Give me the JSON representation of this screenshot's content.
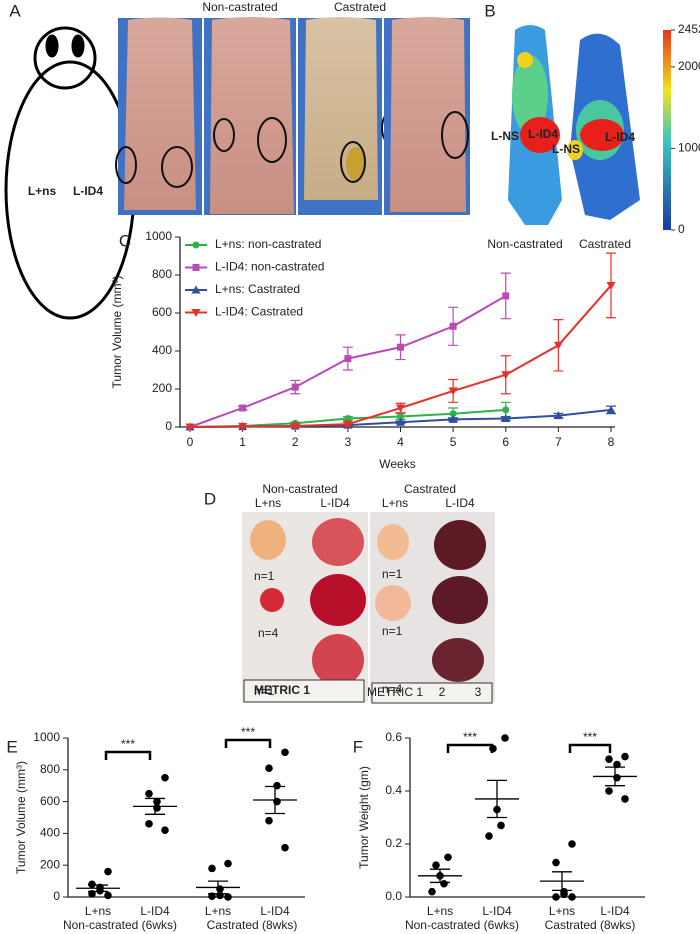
{
  "panel_labels": [
    "A",
    "B",
    "C",
    "D",
    "E",
    "F"
  ],
  "panel_a": {
    "columns": [
      "Non-castrated",
      "Castrated"
    ],
    "sites": [
      "L+ns",
      "L-ID4"
    ]
  },
  "panel_b": {
    "sites": [
      "L-NS",
      "L-ID4",
      "L-NS",
      "L-ID4"
    ],
    "groups": [
      "Non-castrated",
      "Castrated"
    ],
    "colorbar_ticks": [
      2452,
      2000,
      1000,
      0
    ],
    "colorbar_lim": [
      0,
      2452
    ]
  },
  "panel_d": {
    "groups": [
      "Non-castrated",
      "Castrated"
    ],
    "columns": [
      "L+ns",
      "L-ID4",
      "L+ns",
      "L-ID4"
    ],
    "counts": [
      "n=1",
      "n=4",
      "n=1",
      "n=1",
      "n=1",
      "n=4"
    ],
    "ruler_labels": [
      "METRIC 1",
      "METRIC 1",
      "2",
      "3"
    ]
  },
  "chart_data": [
    {
      "type": "line",
      "xlabel": "Weeks",
      "ylabel": "Tumor Volume (mm³)",
      "legend": "upper left",
      "x": [
        0,
        1,
        2,
        3,
        4,
        5,
        6,
        7,
        8
      ],
      "xlim": [
        0,
        8
      ],
      "xticks": [
        0,
        1,
        2,
        3,
        4,
        5,
        6,
        7,
        8
      ],
      "ylim": [
        0,
        1000
      ],
      "yticks": [
        0,
        200,
        400,
        600,
        800,
        1000
      ],
      "series": [
        {
          "name": "L+ns: non-castrated",
          "color": "#2db34a",
          "marker": "circle",
          "values": [
            0,
            5,
            20,
            45,
            55,
            70,
            90,
            null,
            null
          ],
          "errors": [
            0,
            2,
            5,
            10,
            15,
            30,
            40,
            null,
            null
          ]
        },
        {
          "name": "L-ID4: non-castrated",
          "color": "#b84bb8",
          "marker": "square",
          "values": [
            0,
            100,
            210,
            360,
            420,
            530,
            690,
            null,
            null
          ],
          "errors": [
            0,
            10,
            35,
            60,
            65,
            100,
            120,
            null,
            null
          ]
        },
        {
          "name": "L+ns: Castrated",
          "color": "#2f4fa0",
          "marker": "triangle-up",
          "values": [
            0,
            2,
            5,
            10,
            25,
            40,
            45,
            60,
            90
          ],
          "errors": [
            0,
            1,
            2,
            4,
            6,
            8,
            10,
            12,
            20
          ]
        },
        {
          "name": "L-ID4: Castrated",
          "color": "#e8302a",
          "marker": "triangle-down",
          "values": [
            0,
            3,
            5,
            15,
            100,
            190,
            275,
            430,
            745
          ],
          "errors": [
            0,
            2,
            5,
            10,
            25,
            60,
            100,
            135,
            170
          ]
        }
      ]
    },
    {
      "type": "dotplot",
      "ylabel": "Tumor Volume (mm³)",
      "ylim": [
        0,
        1000
      ],
      "yticks": [
        0,
        200,
        400,
        600,
        800,
        1000
      ],
      "categories": [
        "L+ns",
        "L-ID4",
        "L+ns",
        "L-ID4"
      ],
      "group_labels": [
        "Non-castrated (6wks)",
        "Castrated (8wks)"
      ],
      "significance": [
        "***",
        "***"
      ],
      "points": [
        [
          160,
          80,
          60,
          40,
          20,
          10
        ],
        [
          750,
          650,
          600,
          560,
          460,
          420
        ],
        [
          210,
          180,
          50,
          10,
          5,
          0
        ],
        [
          910,
          810,
          700,
          600,
          480,
          310
        ]
      ],
      "means": [
        55,
        570,
        60,
        610
      ],
      "sems": [
        20,
        50,
        40,
        85
      ]
    },
    {
      "type": "dotplot",
      "ylabel": "Tumor Weight (gm)",
      "ylim": [
        0,
        0.6
      ],
      "yticks": [
        {
          "value": 0,
          "label": "0.0"
        },
        0.2,
        0.4,
        0.6
      ],
      "categories": [
        "L+ns",
        "L-ID4",
        "L+ns",
        "L-ID4"
      ],
      "group_labels": [
        "Non-castrated (6wks)",
        "Castrated (8wks)"
      ],
      "significance": [
        "***",
        "***"
      ],
      "points": [
        [
          0.15,
          0.12,
          0.08,
          0.05,
          0.02
        ],
        [
          0.6,
          0.56,
          0.33,
          0.27,
          0.23
        ],
        [
          0.2,
          0.13,
          0.02,
          0.01,
          0,
          0
        ],
        [
          0.53,
          0.52,
          0.5,
          0.45,
          0.4,
          0.37
        ]
      ],
      "means": [
        0.08,
        0.37,
        0.06,
        0.455
      ],
      "sems": [
        0.025,
        0.07,
        0.035,
        0.035
      ]
    }
  ]
}
